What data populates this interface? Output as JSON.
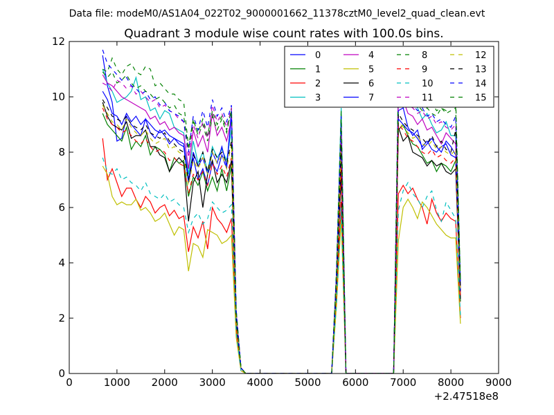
{
  "suptitle": "Data file: modeM0/AS1A04_022T02_9000001662_11378cztM0_level2_quad_clean.evt",
  "chart_data": {
    "type": "line",
    "title": "Quadrant 3 module wise count rates with 100.0s bins.",
    "xlabel": "",
    "ylabel": "",
    "x_offset_label": "+2.47518e8",
    "xlim": [
      0,
      9000
    ],
    "ylim": [
      0,
      12
    ],
    "xticks": [
      0,
      1000,
      2000,
      3000,
      4000,
      5000,
      6000,
      7000,
      8000,
      9000
    ],
    "yticks": [
      0,
      2,
      4,
      6,
      8,
      10,
      12
    ],
    "grid": false,
    "legend_position": "top-right",
    "legend_columns": 4,
    "segments_x": {
      "seg1": [
        700,
        800,
        900,
        1000,
        1100,
        1200,
        1300,
        1400,
        1500,
        1600,
        1700,
        1800,
        1900,
        2000,
        2100,
        2200,
        2300,
        2400,
        2500,
        2600,
        2700,
        2800,
        2900,
        3000,
        3100,
        3200,
        3300,
        3400
      ],
      "tail": [
        3500,
        3600,
        3700
      ],
      "spike": [
        5500,
        5600,
        5700,
        5800,
        5900
      ],
      "seg2": [
        6900,
        7000,
        7100,
        7200,
        7300,
        7400,
        7500,
        7600,
        7700,
        7800,
        7900,
        8000,
        8100,
        8200
      ]
    },
    "series": [
      {
        "name": "0",
        "color": "#0000ff",
        "dash": "solid",
        "seg1": [
          11.5,
          10.4,
          9.8,
          8.4,
          8.5,
          9.3,
          9.0,
          8.8,
          8.6,
          9.2,
          8.7,
          8.5,
          8.8,
          8.6,
          8.3,
          8.5,
          8.3,
          8.2,
          6.9,
          7.8,
          7.0,
          7.4,
          6.8,
          7.6,
          7.3,
          7.9,
          7.4,
          9.5
        ],
        "tail": [
          2.0,
          0.2,
          0.0
        ],
        "spike": [
          0.0,
          3.2,
          7.8,
          0.0,
          0.0
        ],
        "seg2": [
          9.5,
          9.6,
          8.9,
          8.6,
          8.8,
          8.1,
          8.3,
          8.5,
          8.2,
          8.0,
          8.4,
          8.2,
          7.9,
          3.0
        ]
      },
      {
        "name": "1",
        "color": "#008000",
        "dash": "solid",
        "seg1": [
          9.4,
          9.0,
          8.8,
          8.6,
          8.4,
          8.9,
          8.1,
          8.4,
          8.2,
          8.6,
          7.9,
          8.2,
          8.1,
          7.9,
          7.3,
          7.8,
          7.6,
          7.7,
          6.4,
          7.1,
          6.8,
          7.3,
          6.6,
          7.1,
          6.6,
          7.4,
          6.6,
          7.5
        ],
        "tail": [
          1.8,
          0.2,
          0.0
        ],
        "spike": [
          0.0,
          3.0,
          7.4,
          0.0,
          0.0
        ],
        "seg2": [
          8.8,
          9.0,
          8.6,
          8.3,
          8.2,
          7.9,
          7.6,
          7.7,
          7.3,
          7.6,
          7.5,
          7.3,
          7.7,
          2.6
        ]
      },
      {
        "name": "2",
        "color": "#ff0000",
        "dash": "solid",
        "seg1": [
          8.5,
          7.0,
          7.4,
          6.9,
          6.4,
          6.7,
          6.7,
          6.3,
          6.0,
          6.4,
          6.2,
          5.8,
          6.0,
          6.1,
          5.7,
          5.9,
          5.6,
          5.7,
          4.4,
          5.3,
          4.9,
          5.5,
          4.5,
          6.0,
          5.6,
          5.4,
          5.1,
          5.6
        ],
        "tail": [
          1.6,
          0.1,
          0.0
        ],
        "spike": [
          0.0,
          2.6,
          6.2,
          0.0,
          0.0
        ],
        "seg2": [
          6.5,
          6.8,
          6.5,
          6.7,
          6.3,
          6.0,
          5.4,
          6.3,
          5.8,
          5.5,
          5.8,
          5.6,
          5.5,
          2.0
        ]
      },
      {
        "name": "3",
        "color": "#00bfbf",
        "dash": "solid",
        "seg1": [
          11.0,
          10.5,
          10.2,
          9.8,
          9.9,
          10.0,
          10.2,
          10.7,
          9.9,
          10.0,
          9.5,
          9.6,
          9.2,
          9.5,
          9.4,
          8.9,
          8.8,
          8.7,
          7.2,
          8.4,
          7.6,
          8.0,
          7.3,
          8.2,
          7.8,
          8.1,
          7.7,
          8.8
        ],
        "tail": [
          2.2,
          0.2,
          0.0
        ],
        "spike": [
          0.0,
          3.6,
          9.6,
          0.0,
          0.0
        ],
        "seg2": [
          10.6,
          10.3,
          10.0,
          9.8,
          9.6,
          9.2,
          9.4,
          9.0,
          8.7,
          8.8,
          9.1,
          8.6,
          8.6,
          3.2
        ]
      },
      {
        "name": "4",
        "color": "#bf00bf",
        "dash": "solid",
        "seg1": [
          10.8,
          10.5,
          10.4,
          10.2,
          10.0,
          9.9,
          9.8,
          9.7,
          9.6,
          9.5,
          9.2,
          9.3,
          9.0,
          9.1,
          8.8,
          8.9,
          8.7,
          8.6,
          7.4,
          8.8,
          8.2,
          8.6,
          8.0,
          9.4,
          8.6,
          8.9,
          8.4,
          9.2
        ],
        "tail": [
          2.1,
          0.2,
          0.0
        ],
        "spike": [
          0.0,
          3.4,
          8.4,
          0.0,
          0.0
        ],
        "seg2": [
          10.0,
          9.9,
          9.4,
          9.3,
          9.0,
          9.2,
          8.8,
          8.9,
          8.6,
          8.3,
          8.7,
          8.5,
          8.3,
          3.1
        ]
      },
      {
        "name": "5",
        "color": "#bfbf00",
        "dash": "solid",
        "seg1": [
          7.5,
          7.2,
          6.4,
          6.1,
          6.2,
          6.1,
          6.1,
          6.3,
          5.9,
          6.0,
          5.8,
          5.5,
          5.6,
          5.8,
          5.4,
          5.0,
          5.3,
          5.2,
          3.7,
          4.7,
          4.6,
          4.2,
          5.2,
          5.1,
          5.0,
          4.7,
          4.8,
          5.0
        ],
        "tail": [
          1.3,
          0.1,
          0.0
        ],
        "spike": [
          0.0,
          2.4,
          5.6,
          0.0,
          0.0
        ],
        "seg2": [
          4.8,
          6.0,
          6.3,
          6.0,
          5.6,
          6.2,
          6.0,
          5.7,
          5.4,
          5.2,
          5.0,
          4.9,
          4.9,
          1.8
        ]
      },
      {
        "name": "6",
        "color": "#000000",
        "dash": "solid",
        "seg1": [
          9.8,
          9.3,
          9.0,
          8.9,
          8.8,
          9.1,
          8.5,
          8.6,
          8.6,
          8.8,
          8.2,
          8.2,
          7.9,
          7.8,
          7.3,
          7.6,
          7.8,
          7.6,
          5.5,
          6.9,
          7.3,
          6.0,
          7.2,
          7.7,
          6.9,
          7.2,
          6.9,
          7.7
        ],
        "tail": [
          1.9,
          0.2,
          0.0
        ],
        "spike": [
          0.0,
          3.1,
          7.2,
          0.0,
          0.0
        ],
        "seg2": [
          8.9,
          8.4,
          8.6,
          8.0,
          7.9,
          7.8,
          7.5,
          7.7,
          7.5,
          7.6,
          7.3,
          7.2,
          7.4,
          2.7
        ]
      },
      {
        "name": "7",
        "color": "#0000ff",
        "dash": "solid",
        "seg1": [
          10.2,
          9.9,
          9.4,
          9.3,
          9.0,
          9.4,
          9.1,
          9.3,
          9.0,
          9.2,
          9.0,
          8.8,
          8.7,
          8.8,
          8.6,
          8.5,
          8.4,
          8.3,
          7.0,
          8.0,
          7.5,
          7.8,
          7.2,
          8.0,
          7.6,
          8.2,
          7.5,
          9.3
        ],
        "tail": [
          2.0,
          0.2,
          0.0
        ],
        "spike": [
          0.0,
          3.3,
          8.0,
          0.0,
          0.0
        ],
        "seg2": [
          9.2,
          9.0,
          8.8,
          8.7,
          8.5,
          8.2,
          8.4,
          8.1,
          8.0,
          8.2,
          8.3,
          7.9,
          7.8,
          2.9
        ]
      },
      {
        "name": "8",
        "color": "#008000",
        "dash": "dashed",
        "seg1": [
          11.0,
          10.9,
          11.4,
          11.0,
          10.8,
          11.1,
          11.2,
          10.9,
          10.8,
          11.1,
          11.0,
          10.4,
          10.5,
          10.3,
          10.1,
          10.1,
          9.9,
          9.8,
          8.2,
          9.2,
          8.6,
          9.0,
          8.4,
          9.3,
          8.8,
          9.2,
          8.7,
          9.6
        ],
        "tail": [
          2.3,
          0.2,
          0.0
        ],
        "spike": [
          0.0,
          3.7,
          9.5,
          0.0,
          0.0
        ],
        "seg2": [
          10.7,
          10.6,
          10.4,
          10.2,
          10.0,
          9.9,
          9.7,
          9.8,
          9.5,
          9.6,
          9.4,
          9.5,
          9.6,
          3.4
        ]
      },
      {
        "name": "9",
        "color": "#ff0000",
        "dash": "dashed",
        "seg1": [
          9.6,
          9.2,
          9.0,
          8.9,
          8.7,
          8.8,
          8.6,
          8.4,
          8.3,
          8.5,
          8.2,
          8.0,
          8.1,
          8.0,
          7.7,
          7.8,
          7.6,
          7.5,
          6.5,
          7.2,
          7.0,
          7.3,
          6.8,
          7.6,
          7.2,
          7.5,
          7.1,
          7.8
        ],
        "tail": [
          1.9,
          0.2,
          0.0
        ],
        "spike": [
          0.0,
          3.0,
          7.5,
          0.0,
          0.0
        ],
        "seg2": [
          9.0,
          8.8,
          8.5,
          8.4,
          8.2,
          8.0,
          7.9,
          8.1,
          7.8,
          7.9,
          7.7,
          7.6,
          7.8,
          2.8
        ]
      },
      {
        "name": "10",
        "color": "#00bfbf",
        "dash": "dashed",
        "seg1": [
          7.8,
          7.3,
          7.2,
          7.4,
          7.0,
          7.1,
          6.9,
          6.8,
          6.6,
          6.9,
          6.5,
          6.4,
          6.3,
          6.5,
          6.2,
          6.3,
          6.1,
          6.0,
          5.1,
          5.6,
          5.8,
          5.4,
          5.6,
          6.2,
          6.0,
          5.8,
          5.9,
          6.1
        ],
        "tail": [
          1.5,
          0.1,
          0.0
        ],
        "spike": [
          0.0,
          2.5,
          6.0,
          0.0,
          0.0
        ],
        "seg2": [
          5.9,
          6.6,
          6.9,
          6.5,
          6.3,
          6.0,
          6.4,
          6.6,
          5.9,
          5.5,
          6.2,
          5.9,
          5.6,
          2.1
        ]
      },
      {
        "name": "11",
        "color": "#bf00bf",
        "dash": "dashed",
        "seg1": [
          10.5,
          10.4,
          10.2,
          10.6,
          10.5,
          10.3,
          10.4,
          10.1,
          10.2,
          10.0,
          9.8,
          9.9,
          9.6,
          9.7,
          9.5,
          9.4,
          9.2,
          9.1,
          7.8,
          9.0,
          8.5,
          9.1,
          8.5,
          9.7,
          9.1,
          9.4,
          8.9,
          9.6
        ],
        "tail": [
          2.2,
          0.2,
          0.0
        ],
        "spike": [
          0.0,
          3.5,
          9.0,
          0.0,
          0.0
        ],
        "seg2": [
          10.2,
          10.0,
          9.7,
          9.6,
          9.4,
          9.5,
          9.2,
          9.3,
          9.0,
          9.1,
          8.9,
          8.8,
          9.0,
          3.2
        ]
      },
      {
        "name": "12",
        "color": "#bfbf00",
        "dash": "dashed",
        "seg1": [
          9.7,
          9.4,
          9.1,
          9.0,
          8.8,
          9.2,
          8.9,
          8.7,
          8.6,
          8.8,
          8.5,
          8.3,
          8.4,
          8.5,
          8.1,
          8.2,
          8.0,
          7.9,
          6.8,
          7.7,
          7.4,
          7.8,
          7.2,
          8.0,
          7.6,
          7.9,
          7.4,
          8.3
        ],
        "tail": [
          2.0,
          0.2,
          0.0
        ],
        "spike": [
          0.0,
          3.2,
          8.2,
          0.0,
          0.0
        ],
        "seg2": [
          9.1,
          8.9,
          8.7,
          8.5,
          8.6,
          8.3,
          8.2,
          8.4,
          8.1,
          8.2,
          8.0,
          7.9,
          8.1,
          2.9
        ]
      },
      {
        "name": "13",
        "color": "#000000",
        "dash": "dashed",
        "seg1": [
          9.9,
          9.6,
          9.3,
          9.2,
          9.1,
          9.3,
          9.0,
          8.9,
          8.8,
          9.0,
          8.7,
          8.6,
          8.5,
          8.7,
          8.4,
          8.3,
          8.1,
          8.0,
          7.0,
          7.9,
          7.5,
          8.0,
          7.3,
          8.1,
          7.8,
          8.0,
          7.6,
          8.4
        ],
        "tail": [
          2.0,
          0.2,
          0.0
        ],
        "spike": [
          0.0,
          3.3,
          8.3,
          0.0,
          0.0
        ],
        "seg2": [
          9.4,
          9.1,
          8.9,
          8.8,
          8.6,
          8.5,
          8.3,
          8.6,
          8.2,
          8.4,
          8.1,
          8.0,
          8.8,
          3.0
        ]
      },
      {
        "name": "14",
        "color": "#0000ff",
        "dash": "dashed",
        "seg1": [
          11.7,
          11.2,
          11.0,
          10.8,
          10.6,
          10.7,
          10.4,
          10.3,
          10.1,
          10.2,
          9.9,
          10.0,
          9.7,
          9.8,
          9.5,
          9.4,
          9.3,
          9.1,
          8.0,
          9.3,
          8.8,
          9.5,
          8.9,
          9.9,
          9.3,
          9.6,
          9.1,
          9.7
        ],
        "tail": [
          2.3,
          0.2,
          0.0
        ],
        "spike": [
          0.0,
          3.6,
          9.3,
          0.0,
          0.0
        ],
        "seg2": [
          10.4,
          10.1,
          9.9,
          9.7,
          9.5,
          9.6,
          9.3,
          9.4,
          9.1,
          9.2,
          9.0,
          8.9,
          9.3,
          3.3
        ]
      },
      {
        "name": "15",
        "color": "#008000",
        "dash": "dashed",
        "seg1": [
          10.9,
          10.7,
          10.9,
          10.5,
          10.6,
          10.8,
          10.5,
          10.3,
          10.4,
          10.2,
          10.1,
          9.9,
          10.0,
          9.8,
          9.6,
          9.7,
          9.4,
          9.3,
          8.1,
          9.1,
          8.7,
          9.2,
          8.6,
          9.5,
          9.0,
          9.3,
          8.8,
          9.5
        ],
        "tail": [
          2.2,
          0.2,
          0.0
        ],
        "spike": [
          0.0,
          3.5,
          9.2,
          0.0,
          0.0
        ],
        "seg2": [
          10.5,
          10.2,
          10.0,
          9.8,
          9.7,
          9.5,
          9.6,
          9.4,
          9.3,
          9.6,
          9.5,
          9.7,
          10.0,
          3.3
        ]
      }
    ]
  }
}
